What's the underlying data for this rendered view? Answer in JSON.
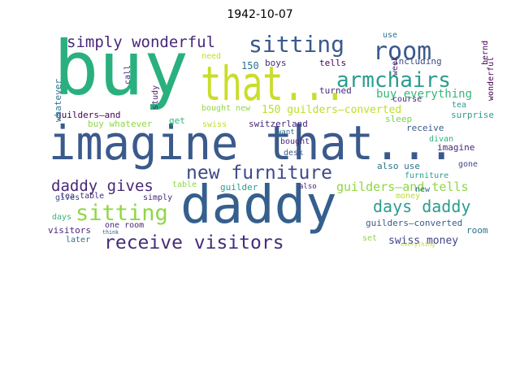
{
  "title": "1942-10-07",
  "words": [
    {
      "text": "buy",
      "color": "#2ab07f",
      "vertical": false
    },
    {
      "text": "imagine that...",
      "color": "#3b5a8c",
      "vertical": false
    },
    {
      "text": "daddy",
      "color": "#355f8d",
      "vertical": false
    },
    {
      "text": "that...",
      "color": "#c9dd2a",
      "vertical": false
    },
    {
      "text": "sitting",
      "color": "#3b5a8c",
      "vertical": false
    },
    {
      "text": "room",
      "color": "#3b5a8c",
      "vertical": false
    },
    {
      "text": "simply wonderful",
      "color": "#482878",
      "vertical": false
    },
    {
      "text": "armchairs",
      "color": "#2a9d8f",
      "vertical": false
    },
    {
      "text": "new furniture",
      "color": "#3e4a89",
      "vertical": false
    },
    {
      "text": "daddy gives",
      "color": "#482878",
      "vertical": false
    },
    {
      "text": "sitting",
      "color": "#8fd744",
      "vertical": false
    },
    {
      "text": "receive visitors",
      "color": "#472c7a",
      "vertical": false
    },
    {
      "text": "days daddy",
      "color": "#2a9d8f",
      "vertical": false
    },
    {
      "text": "buy everything",
      "color": "#35b779",
      "vertical": false
    },
    {
      "text": "150 guilders—converted",
      "color": "#bcdf27",
      "vertical": false
    },
    {
      "text": "guilders—and tells",
      "color": "#8fd744",
      "vertical": false
    },
    {
      "text": "swiss money",
      "color": "#414487",
      "vertical": false
    },
    {
      "text": "use",
      "color": "#2c728e",
      "vertical": false
    },
    {
      "text": "boys",
      "color": "#472c7a",
      "vertical": false
    },
    {
      "text": "tells",
      "color": "#440154",
      "vertical": false
    },
    {
      "text": "including",
      "color": "#3e4a89",
      "vertical": false
    },
    {
      "text": "need",
      "color": "#bcdf27",
      "vertical": false
    },
    {
      "text": "150",
      "color": "#2c728e",
      "vertical": false
    },
    {
      "text": "turned",
      "color": "#482878",
      "vertical": false
    },
    {
      "text": "course",
      "color": "#482878",
      "vertical": false
    },
    {
      "text": "tea",
      "color": "#2a9d8f",
      "vertical": false
    },
    {
      "text": "bought new",
      "color": "#8fd744",
      "vertical": false
    },
    {
      "text": "guilders—and",
      "color": "#440154",
      "vertical": false
    },
    {
      "text": "get",
      "color": "#35b779",
      "vertical": false
    },
    {
      "text": "swiss",
      "color": "#bcdf27",
      "vertical": false
    },
    {
      "text": "switzerland",
      "color": "#482878",
      "vertical": false
    },
    {
      "text": "sleep",
      "color": "#7ad151",
      "vertical": false
    },
    {
      "text": "surprise",
      "color": "#2a9d8f",
      "vertical": false
    },
    {
      "text": "buy whatever",
      "color": "#8fd744",
      "vertical": false
    },
    {
      "text": "want",
      "color": "#2c728e",
      "vertical": false
    },
    {
      "text": "receive",
      "color": "#3b5a8c",
      "vertical": false
    },
    {
      "text": "divan",
      "color": "#2ab07f",
      "vertical": false
    },
    {
      "text": "bought",
      "color": "#482878",
      "vertical": false
    },
    {
      "text": "imagine",
      "color": "#482878",
      "vertical": false
    },
    {
      "text": "desk",
      "color": "#3b5a8c",
      "vertical": false
    },
    {
      "text": "gone",
      "color": "#3e4a89",
      "vertical": false
    },
    {
      "text": "tea table",
      "color": "#472c7a",
      "vertical": false
    },
    {
      "text": "table",
      "color": "#8fd744",
      "vertical": false
    },
    {
      "text": "guilder",
      "color": "#2a9d8f",
      "vertical": false
    },
    {
      "text": "also",
      "color": "#482878",
      "vertical": false
    },
    {
      "text": "also use",
      "color": "#2c728e",
      "vertical": false
    },
    {
      "text": "furniture",
      "color": "#2a9d8f",
      "vertical": false
    },
    {
      "text": "gives",
      "color": "#3e4a89",
      "vertical": false
    },
    {
      "text": "simply",
      "color": "#482878",
      "vertical": false
    },
    {
      "text": "money",
      "color": "#bcdf27",
      "vertical": false
    },
    {
      "text": "new",
      "color": "#2c728e",
      "vertical": false
    },
    {
      "text": "days",
      "color": "#35b779",
      "vertical": false
    },
    {
      "text": "one room",
      "color": "#482878",
      "vertical": false
    },
    {
      "text": "guilders—converted",
      "color": "#3b5a8c",
      "vertical": false
    },
    {
      "text": "visitors",
      "color": "#482878",
      "vertical": false
    },
    {
      "text": "room",
      "color": "#2c728e",
      "vertical": false
    },
    {
      "text": "later",
      "color": "#2c728e",
      "vertical": false
    },
    {
      "text": "set",
      "color": "#8fd744",
      "vertical": false
    },
    {
      "text": "think",
      "color": "#3b5a8c",
      "vertical": false
    },
    {
      "text": "everything",
      "color": "#bcdf27",
      "vertical": false
    },
    {
      "text": "whatever",
      "color": "#2c728e",
      "vertical": true
    },
    {
      "text": "study",
      "color": "#482878",
      "vertical": true
    },
    {
      "text": "call",
      "color": "#482878",
      "vertical": true
    },
    {
      "text": "week",
      "color": "#482878",
      "vertical": true
    },
    {
      "text": "bernd",
      "color": "#440154",
      "vertical": true
    },
    {
      "text": "wonderful",
      "color": "#440154",
      "vertical": true
    }
  ]
}
